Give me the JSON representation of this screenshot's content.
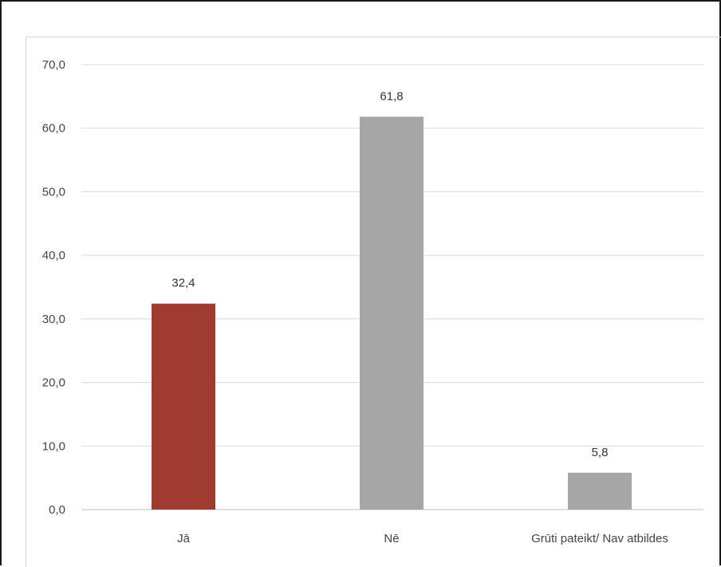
{
  "chart_data": {
    "type": "bar",
    "categories": [
      "Jā",
      "Nē",
      "Grūti pateikt/ Nav atbildes"
    ],
    "values": [
      32.4,
      61.8,
      5.8
    ],
    "value_labels": [
      "32,4",
      "61,8",
      "5,8"
    ],
    "bar_colors": [
      "#9e3a2e",
      "#a6a6a6",
      "#a6a6a6"
    ],
    "ylim": [
      0,
      70
    ],
    "y_ticks": [
      0,
      10,
      20,
      30,
      40,
      50,
      60,
      70
    ],
    "y_tick_labels": [
      "0,0",
      "10,0",
      "20,0",
      "30,0",
      "40,0",
      "50,0",
      "60,0",
      "70,0"
    ],
    "grid": true,
    "legend": "none"
  }
}
